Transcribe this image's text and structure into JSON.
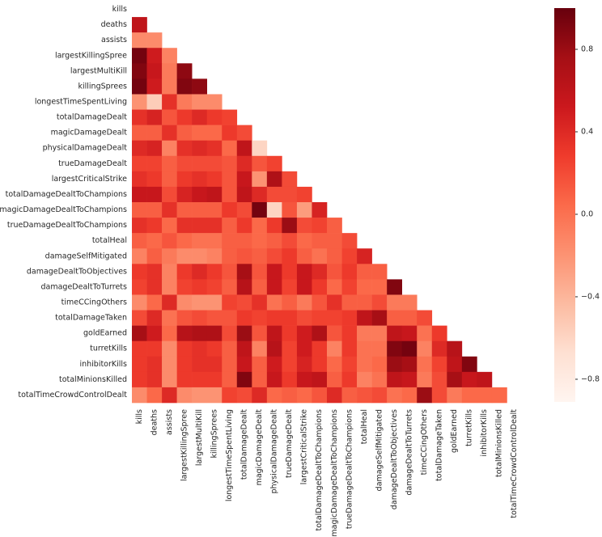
{
  "chart_data": {
    "type": "heatmap",
    "colormap": "Reds",
    "labels": [
      "kills",
      "deaths",
      "assists",
      "largestKillingSpree",
      "largestMultiKill",
      "killingSprees",
      "longestTimeSpentLiving",
      "totalDamageDealt",
      "magicDamageDealt",
      "physicalDamageDealt",
      "trueDamageDealt",
      "largestCriticalStrike",
      "totalDamageDealtToChampions",
      "magicDamageDealtToChampions",
      "trueDamageDealtToChampions",
      "totalHeal",
      "damageSelfMitigated",
      "damageDealtToObjectives",
      "damageDealtToTurrets",
      "timeCCingOthers",
      "totalDamageTaken",
      "goldEarned",
      "turretKills",
      "inhibitorKills",
      "totalMinionsKilled",
      "totalTimeCrowdControlDealt"
    ],
    "values": [
      [],
      [
        0.6
      ],
      [
        -0.15,
        -0.15
      ],
      [
        0.95,
        0.5,
        -0.1
      ],
      [
        0.9,
        0.55,
        -0.05,
        0.85
      ],
      [
        0.95,
        0.5,
        -0.05,
        0.9,
        0.85
      ],
      [
        -0.2,
        -0.55,
        0.35,
        -0.05,
        -0.15,
        -0.15
      ],
      [
        0.35,
        0.45,
        0.15,
        0.3,
        0.4,
        0.3,
        0.25
      ],
      [
        0.1,
        0.1,
        0.35,
        0.1,
        0.05,
        0.05,
        0.3,
        0.2
      ],
      [
        0.4,
        0.45,
        -0.1,
        0.35,
        0.4,
        0.35,
        0.05,
        0.6,
        -0.6
      ],
      [
        0.25,
        0.25,
        0.1,
        0.2,
        0.2,
        0.2,
        0.15,
        0.4,
        0.15,
        0.25
      ],
      [
        0.35,
        0.3,
        0.1,
        0.3,
        0.35,
        0.3,
        0.15,
        0.55,
        -0.2,
        0.7,
        0.2
      ],
      [
        0.55,
        0.55,
        0.2,
        0.45,
        0.55,
        0.6,
        0.15,
        0.6,
        0.4,
        0.2,
        0.2,
        0.25
      ],
      [
        0.1,
        0.1,
        0.35,
        0.1,
        0.1,
        0.1,
        0.3,
        0.2,
        0.95,
        -0.6,
        0.15,
        -0.25,
        0.45
      ],
      [
        0.35,
        0.3,
        0.05,
        0.35,
        0.35,
        0.35,
        0.1,
        0.3,
        0.05,
        0.3,
        0.8,
        0.2,
        0.25,
        0.1
      ],
      [
        0.1,
        0.05,
        0.15,
        0.05,
        0.0,
        0.0,
        0.1,
        0.1,
        0.05,
        0.1,
        0.2,
        0.05,
        0.1,
        0.1,
        0.2
      ],
      [
        -0.1,
        0.1,
        -0.05,
        -0.15,
        -0.15,
        -0.1,
        0.1,
        0.15,
        0.1,
        0.2,
        0.3,
        0.1,
        0.0,
        0.1,
        0.25,
        0.45
      ],
      [
        0.3,
        0.35,
        -0.1,
        0.3,
        0.4,
        0.3,
        0.15,
        0.75,
        0.15,
        0.55,
        0.3,
        0.55,
        0.4,
        0.15,
        0.3,
        0.1,
        0.1
      ],
      [
        0.25,
        0.35,
        -0.1,
        0.25,
        0.3,
        0.25,
        0.1,
        0.65,
        0.1,
        0.55,
        0.25,
        0.55,
        0.3,
        0.05,
        0.25,
        0.05,
        0.05,
        0.9
      ],
      [
        -0.15,
        0.05,
        0.4,
        -0.15,
        -0.2,
        -0.2,
        0.25,
        0.2,
        0.35,
        0.0,
        0.1,
        -0.05,
        0.15,
        0.35,
        0.1,
        0.1,
        0.2,
        -0.05,
        -0.05
      ],
      [
        0.2,
        0.4,
        0.0,
        0.15,
        0.2,
        0.15,
        0.15,
        0.3,
        0.25,
        0.3,
        0.3,
        0.2,
        0.25,
        0.25,
        0.3,
        0.6,
        0.75,
        0.1,
        0.1,
        0.2
      ],
      [
        0.75,
        0.5,
        0.05,
        0.65,
        0.7,
        0.7,
        0.2,
        0.8,
        0.15,
        0.6,
        0.3,
        0.5,
        0.7,
        0.15,
        0.3,
        -0.05,
        -0.05,
        0.6,
        0.55,
        0.0,
        0.3
      ],
      [
        0.3,
        0.3,
        -0.15,
        0.3,
        0.35,
        0.3,
        0.1,
        0.6,
        -0.1,
        0.65,
        0.25,
        0.5,
        0.3,
        -0.1,
        0.3,
        0.0,
        0.0,
        0.9,
        0.95,
        -0.1,
        0.4,
        0.65
      ],
      [
        0.3,
        0.35,
        -0.15,
        0.3,
        0.35,
        0.35,
        0.1,
        0.55,
        0.1,
        0.5,
        0.25,
        0.45,
        0.3,
        0.05,
        0.25,
        0.0,
        0.05,
        0.8,
        0.75,
        0.0,
        0.25,
        0.6,
        0.9
      ],
      [
        0.3,
        0.35,
        -0.15,
        0.3,
        0.3,
        0.3,
        0.1,
        0.9,
        0.1,
        0.55,
        0.3,
        0.55,
        0.6,
        0.1,
        0.3,
        -0.1,
        0.0,
        0.6,
        0.55,
        -0.05,
        0.2,
        0.75,
        0.55,
        0.6
      ],
      [
        -0.15,
        0.05,
        0.4,
        -0.15,
        -0.2,
        -0.2,
        0.25,
        0.2,
        0.4,
        0.05,
        0.1,
        0.05,
        0.15,
        0.4,
        0.1,
        0.15,
        0.2,
        0.0,
        0.05,
        0.8,
        0.2,
        -0.05,
        0.05,
        0.05,
        0.05
      ]
    ],
    "clim": [
      -0.91,
      1.0
    ],
    "cticks": [
      0.8,
      0.4,
      {
        "value": 0,
        "label": "0.0"
      },
      {
        "value": -0.4,
        "label": "−0.4"
      },
      {
        "value": -0.8,
        "label": "−0.8"
      }
    ]
  }
}
